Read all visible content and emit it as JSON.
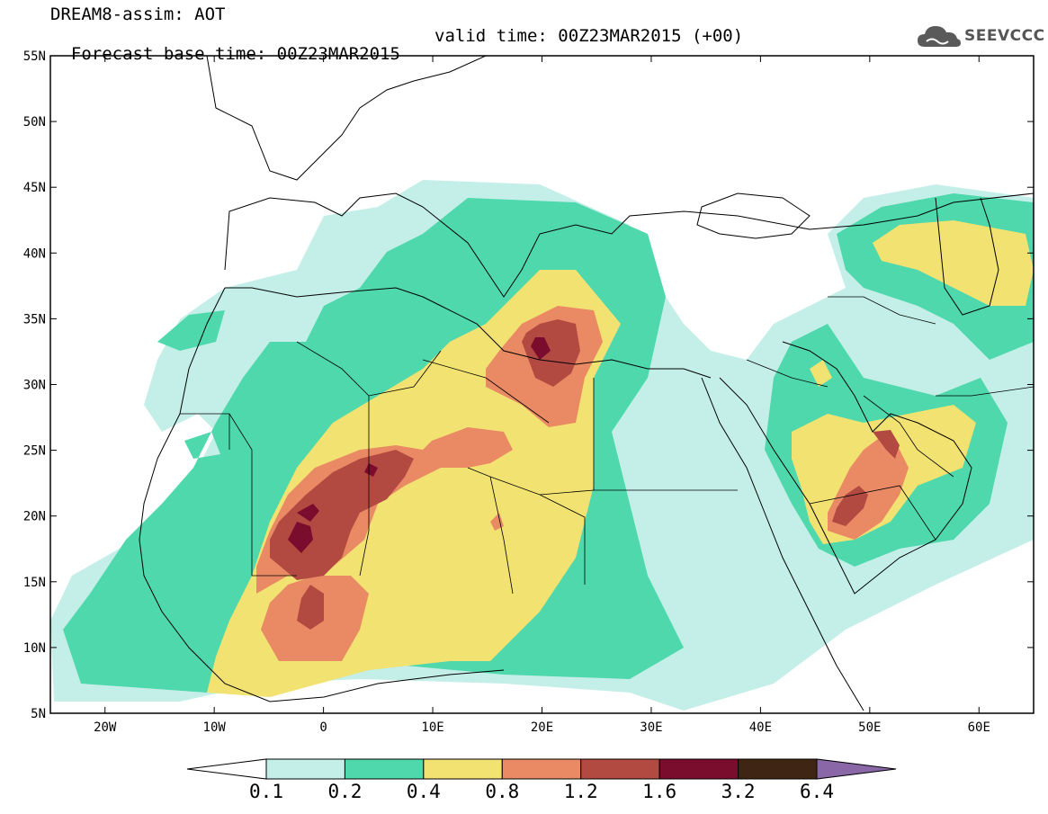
{
  "header": {
    "model_line": "DREAM8-assim: AOT",
    "base_time": "Forecast base time: 00Z23MAR2015",
    "valid_time": "valid time: 00Z23MAR2015 (+00)"
  },
  "logo": {
    "text": "SEEVCCC",
    "icon": "cloud-icon"
  },
  "map": {
    "lon_range": [
      -25,
      65
    ],
    "lat_range": [
      5,
      55
    ],
    "lat_ticks": [
      "55N",
      "50N",
      "45N",
      "40N",
      "35N",
      "30N",
      "25N",
      "20N",
      "15N",
      "10N",
      "5N"
    ],
    "lon_ticks": [
      "20W",
      "10W",
      "0",
      "10E",
      "20E",
      "30E",
      "40E",
      "50E",
      "60E"
    ]
  },
  "colorbar": {
    "boundaries": [
      "0.1",
      "0.2",
      "0.4",
      "0.8",
      "1.2",
      "1.6",
      "3.2",
      "6.4"
    ],
    "colors": [
      "#c4efe9",
      "#4fd8ab",
      "#f2e272",
      "#e98a64",
      "#b34a42",
      "#7a0c2e",
      "#3f2614",
      "#8a68a8"
    ]
  }
}
